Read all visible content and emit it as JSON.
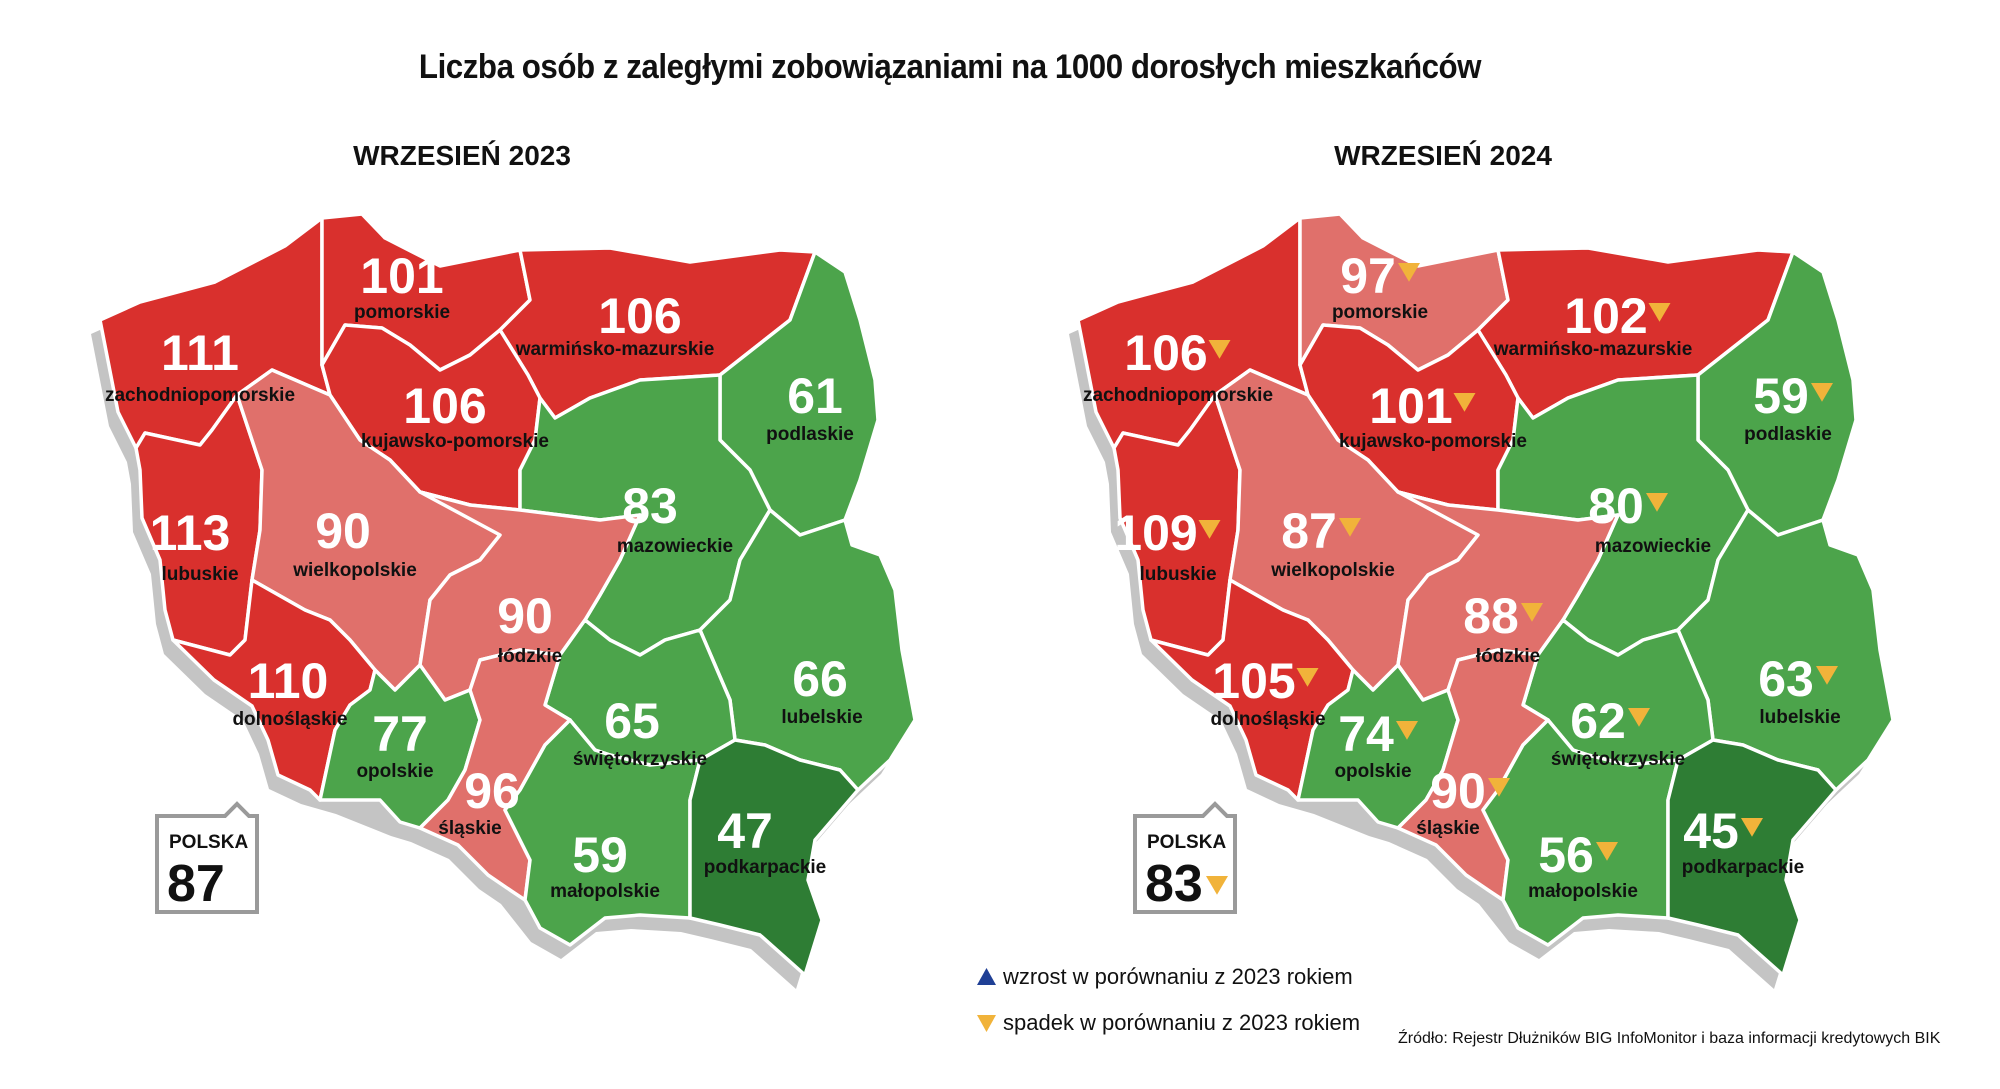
{
  "title": "Liczba osób z zaległymi zobowiązaniami na 1000 dorosłych mieszkańców",
  "maps": [
    {
      "subtitle": "WRZESIEŃ 2023",
      "national": {
        "label": "POLSKA",
        "value": "87",
        "trend": ""
      },
      "regions": [
        {
          "name": "zachodniopomorskie",
          "value": "111",
          "trend": "",
          "color": "#d9302d"
        },
        {
          "name": "pomorskie",
          "value": "101",
          "trend": "",
          "color": "#d9302d"
        },
        {
          "name": "warmińsko-mazurskie",
          "value": "106",
          "trend": "",
          "color": "#d9302d"
        },
        {
          "name": "kujawsko-pomorskie",
          "value": "106",
          "trend": "",
          "color": "#d9302d"
        },
        {
          "name": "podlaskie",
          "value": "61",
          "trend": "",
          "color": "#4ca44b"
        },
        {
          "name": "lubuskie",
          "value": "113",
          "trend": "",
          "color": "#d9302d"
        },
        {
          "name": "wielkopolskie",
          "value": "90",
          "trend": "",
          "color": "#e0706b"
        },
        {
          "name": "mazowieckie",
          "value": "83",
          "trend": "",
          "color": "#4ca44b"
        },
        {
          "name": "łódzkie",
          "value": "90",
          "trend": "",
          "color": "#e0706b"
        },
        {
          "name": "dolnośląskie",
          "value": "110",
          "trend": "",
          "color": "#d9302d"
        },
        {
          "name": "lubelskie",
          "value": "66",
          "trend": "",
          "color": "#4ca44b"
        },
        {
          "name": "opolskie",
          "value": "77",
          "trend": "",
          "color": "#4ca44b"
        },
        {
          "name": "świętokrzyskie",
          "value": "65",
          "trend": "",
          "color": "#4ca44b"
        },
        {
          "name": "śląskie",
          "value": "96",
          "trend": "",
          "color": "#e0706b"
        },
        {
          "name": "małopolskie",
          "value": "59",
          "trend": "",
          "color": "#4ca44b"
        },
        {
          "name": "podkarpackie",
          "value": "47",
          "trend": "",
          "color": "#2e7d34"
        }
      ]
    },
    {
      "subtitle": "WRZESIEŃ 2024",
      "national": {
        "label": "POLSKA",
        "value": "83",
        "trend": "down"
      },
      "regions": [
        {
          "name": "zachodniopomorskie",
          "value": "106",
          "trend": "down",
          "color": "#d9302d"
        },
        {
          "name": "pomorskie",
          "value": "97",
          "trend": "down",
          "color": "#e0706b"
        },
        {
          "name": "warmińsko-mazurskie",
          "value": "102",
          "trend": "down",
          "color": "#d9302d"
        },
        {
          "name": "kujawsko-pomorskie",
          "value": "101",
          "trend": "down",
          "color": "#d9302d"
        },
        {
          "name": "podlaskie",
          "value": "59",
          "trend": "down",
          "color": "#4ca44b"
        },
        {
          "name": "lubuskie",
          "value": "109",
          "trend": "down",
          "color": "#d9302d"
        },
        {
          "name": "wielkopolskie",
          "value": "87",
          "trend": "down",
          "color": "#e0706b"
        },
        {
          "name": "mazowieckie",
          "value": "80",
          "trend": "down",
          "color": "#4ca44b"
        },
        {
          "name": "łódzkie",
          "value": "88",
          "trend": "down",
          "color": "#e0706b"
        },
        {
          "name": "dolnośląskie",
          "value": "105",
          "trend": "down",
          "color": "#d9302d"
        },
        {
          "name": "lubelskie",
          "value": "63",
          "trend": "down",
          "color": "#4ca44b"
        },
        {
          "name": "opolskie",
          "value": "74",
          "trend": "down",
          "color": "#4ca44b"
        },
        {
          "name": "świętokrzyskie",
          "value": "62",
          "trend": "down",
          "color": "#4ca44b"
        },
        {
          "name": "śląskie",
          "value": "90",
          "trend": "down",
          "color": "#e0706b"
        },
        {
          "name": "małopolskie",
          "value": "56",
          "trend": "down",
          "color": "#4ca44b"
        },
        {
          "name": "podkarpackie",
          "value": "45",
          "trend": "down",
          "color": "#2e7d34"
        }
      ]
    }
  ],
  "legend": {
    "up": {
      "text": "wzrost w porównaniu z 2023 rokiem",
      "color": "#1f3f95"
    },
    "down": {
      "text": "spadek w porównaniu z 2023 rokiem",
      "color": "#f1b33a"
    }
  },
  "source": "Źródło: Rejestr Dłużników BIG InfoMonitor i baza informacji kredytowych BIK"
}
